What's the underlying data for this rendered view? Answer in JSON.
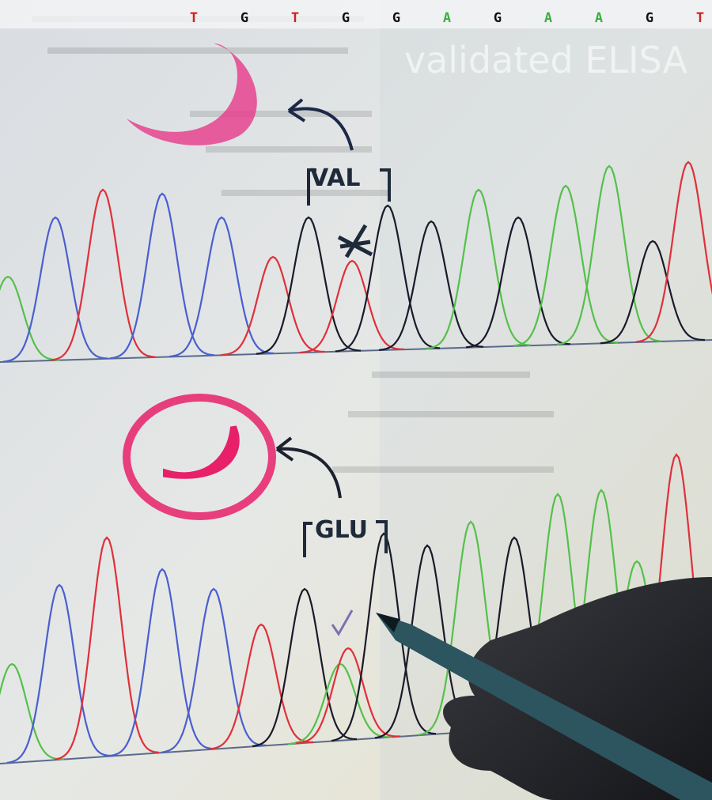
{
  "sequence": {
    "bases": [
      "T",
      "G",
      "T",
      "G",
      "G",
      "A",
      "G",
      "A",
      "A",
      "G",
      "T"
    ]
  },
  "background": {
    "heading": "validated ELISA"
  },
  "annotations": {
    "top": "VAL",
    "bottom": "GLU"
  }
}
